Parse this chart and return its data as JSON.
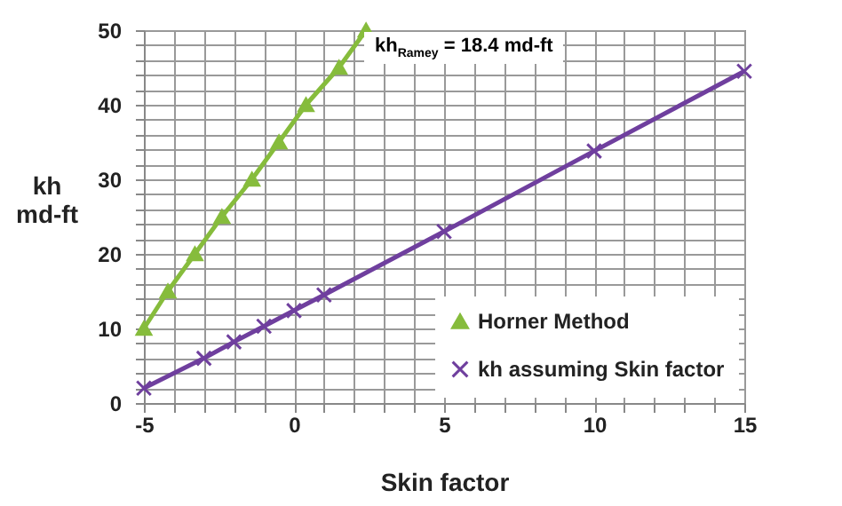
{
  "chart_data": {
    "type": "line",
    "xlabel": "Skin factor",
    "ylabel": "kh md-ft",
    "annotations": [
      "kh$_{Ramey}$ = 18.4 md-ft"
    ],
    "xlim": [
      -5,
      15
    ],
    "ylim": [
      0,
      50
    ],
    "xticks": [
      -5,
      {
        "value": -4,
        "label": null
      },
      {
        "value": -3,
        "label": null
      },
      {
        "value": -2,
        "label": null
      },
      {
        "value": -1,
        "label": null
      },
      0,
      {
        "value": 1,
        "label": null
      },
      {
        "value": 2,
        "label": null
      },
      {
        "value": 3,
        "label": null
      },
      {
        "value": 4,
        "label": null
      },
      5,
      {
        "value": 6,
        "label": null
      },
      {
        "value": 7,
        "label": null
      },
      {
        "value": 8,
        "label": null
      },
      {
        "value": 9,
        "label": null
      },
      10,
      {
        "value": 11,
        "label": null
      },
      {
        "value": 12,
        "label": null
      },
      {
        "value": 13,
        "label": null
      },
      {
        "value": 14,
        "label": null
      },
      15
    ],
    "yticks": [
      0,
      {
        "value": 2,
        "label": null
      },
      {
        "value": 4,
        "label": null
      },
      {
        "value": 6,
        "label": null
      },
      {
        "value": 8,
        "label": null
      },
      10,
      {
        "value": 12,
        "label": null
      },
      {
        "value": 14,
        "label": null
      },
      {
        "value": 16,
        "label": null
      },
      {
        "value": 18,
        "label": null
      },
      20,
      {
        "value": 22,
        "label": null
      },
      {
        "value": 24,
        "label": null
      },
      {
        "value": 26,
        "label": null
      },
      {
        "value": 28,
        "label": null
      },
      30,
      {
        "value": 32,
        "label": null
      },
      {
        "value": 34,
        "label": null
      },
      {
        "value": 36,
        "label": null
      },
      {
        "value": 38,
        "label": null
      },
      40,
      {
        "value": 42,
        "label": null
      },
      {
        "value": 44,
        "label": null
      },
      {
        "value": 46,
        "label": null
      },
      {
        "value": 48,
        "label": null
      },
      50
    ],
    "grid": true,
    "legend": "bottom right",
    "series": [
      {
        "name": "Horner Method",
        "color": "#86bc3c",
        "marker": "triangle",
        "x": [
          -5,
          -4.2,
          -3.3,
          -2.4,
          -1.4,
          -0.5,
          0.4,
          1.5,
          2.4
        ],
        "values": [
          10,
          15,
          20,
          25,
          30,
          35,
          40,
          45,
          50
        ]
      },
      {
        "name": "kh assuming Skin factor",
        "color": "#6f3f9e",
        "marker": "cross",
        "x": [
          -5,
          -3,
          -2,
          -1,
          0,
          1,
          5,
          10,
          15
        ],
        "values": [
          2,
          6,
          8.2,
          10.3,
          12.4,
          14.5,
          23,
          33.8,
          44.5
        ]
      }
    ]
  }
}
